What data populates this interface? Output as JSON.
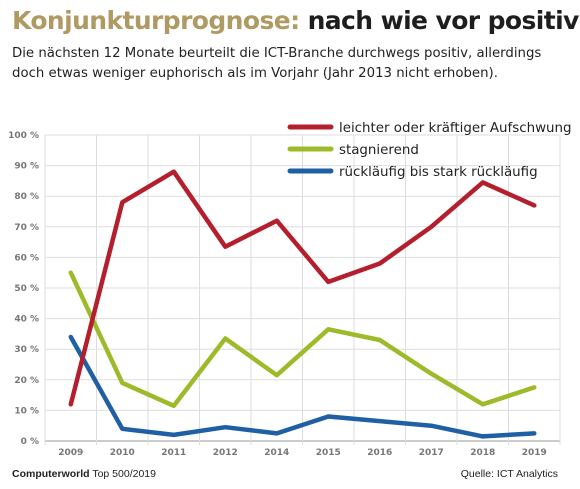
{
  "header": {
    "title_accent": "Konjunkturprognose:",
    "title_rest": "nach wie vor positiv",
    "subtitle": "Die nächsten 12 Monate beurteilt die ICT-Branche durchwegs positiv, allerdings doch etwas weniger euphorisch als im Vorjahr (Jahr 2013 nicht erhoben)."
  },
  "footer": {
    "source_brand": "Computerworld",
    "source_suffix": "Top 500/2019",
    "credit": "Quelle: ICT Analytics"
  },
  "chart_data": {
    "type": "line",
    "x": [
      "2009",
      "2010",
      "2011",
      "2012",
      "2014",
      "2015",
      "2016",
      "2017",
      "2018",
      "2019"
    ],
    "yticks": [
      "0 %",
      "10 %",
      "20 %",
      "30 %",
      "40 %",
      "50 %",
      "60 %",
      "70 %",
      "80 %",
      "90 %",
      "100 %"
    ],
    "ylim": [
      0,
      100
    ],
    "grid": true,
    "legend_position": "top-right",
    "series": [
      {
        "name": "leichter oder kräftiger Aufschwung",
        "color": "#b41f2e",
        "values": [
          12,
          78,
          88,
          63.5,
          72,
          52,
          58,
          70,
          84.5,
          77
        ]
      },
      {
        "name": "stagnierend",
        "color": "#9cba2a",
        "values": [
          55,
          19,
          11.5,
          33.5,
          21.5,
          36.5,
          33,
          22,
          12,
          17.5
        ]
      },
      {
        "name": "rückläufig bis stark rückläufig",
        "color": "#1f5fa4",
        "values": [
          34,
          4,
          2,
          4.5,
          2.5,
          8,
          6.5,
          5,
          1.5,
          2.5
        ]
      }
    ]
  }
}
